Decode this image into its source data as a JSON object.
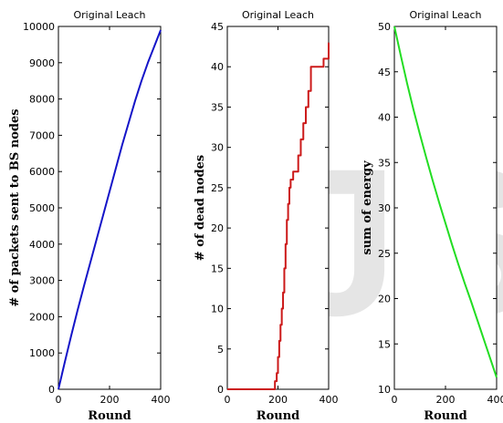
{
  "watermark": "IJS",
  "chart_data": [
    {
      "type": "line",
      "title": "Original Leach",
      "xlabel": "Round",
      "ylabel": "# of packets sent to BS nodes",
      "xlim": [
        0,
        400
      ],
      "ylim": [
        0,
        10000
      ],
      "xticks": [
        0,
        200,
        400
      ],
      "yticks": [
        0,
        1000,
        2000,
        3000,
        4000,
        5000,
        6000,
        7000,
        8000,
        9000,
        10000
      ],
      "grid": false,
      "color": "#1414c8",
      "step": false,
      "series": [
        {
          "x": [
            0,
            25,
            50,
            75,
            100,
            125,
            150,
            175,
            200,
            225,
            250,
            275,
            300,
            325,
            350,
            375,
            400
          ],
          "y": [
            0,
            750,
            1480,
            2180,
            2850,
            3500,
            4150,
            4800,
            5450,
            6100,
            6750,
            7350,
            7950,
            8500,
            9000,
            9450,
            9900
          ]
        }
      ]
    },
    {
      "type": "line",
      "title": "Original Leach",
      "xlabel": "Round",
      "ylabel": "# of dead nodes",
      "xlim": [
        0,
        400
      ],
      "ylim": [
        0,
        45
      ],
      "xticks": [
        0,
        200,
        400
      ],
      "yticks": [
        0,
        5,
        10,
        15,
        20,
        25,
        30,
        35,
        40,
        45
      ],
      "grid": false,
      "color": "#cc1a1a",
      "step": true,
      "series": [
        {
          "x": [
            0,
            180,
            188,
            195,
            200,
            205,
            210,
            215,
            220,
            225,
            230,
            235,
            240,
            245,
            250,
            260,
            270,
            280,
            290,
            300,
            310,
            320,
            330,
            340,
            360,
            380,
            390,
            400
          ],
          "y": [
            0,
            0,
            1,
            2,
            4,
            6,
            8,
            10,
            12,
            15,
            18,
            21,
            23,
            25,
            26,
            27,
            27,
            29,
            31,
            33,
            35,
            37,
            40,
            40,
            40,
            41,
            41,
            43
          ]
        }
      ]
    },
    {
      "type": "line",
      "title": "Original Leach",
      "xlabel": "Round",
      "ylabel": "sum of energy",
      "xlim": [
        0,
        400
      ],
      "ylim": [
        10,
        50
      ],
      "xticks": [
        0,
        200,
        400
      ],
      "yticks": [
        10,
        15,
        20,
        25,
        30,
        35,
        40,
        45,
        50
      ],
      "grid": false,
      "color": "#22dd22",
      "step": false,
      "series": [
        {
          "x": [
            0,
            25,
            50,
            75,
            100,
            125,
            150,
            175,
            200,
            225,
            250,
            275,
            300,
            325,
            350,
            375,
            400
          ],
          "y": [
            50,
            46.8,
            43.7,
            40.8,
            38.1,
            35.5,
            33.0,
            30.6,
            28.3,
            26.0,
            23.8,
            21.7,
            19.7,
            17.6,
            15.5,
            13.4,
            11.3
          ]
        }
      ]
    }
  ]
}
